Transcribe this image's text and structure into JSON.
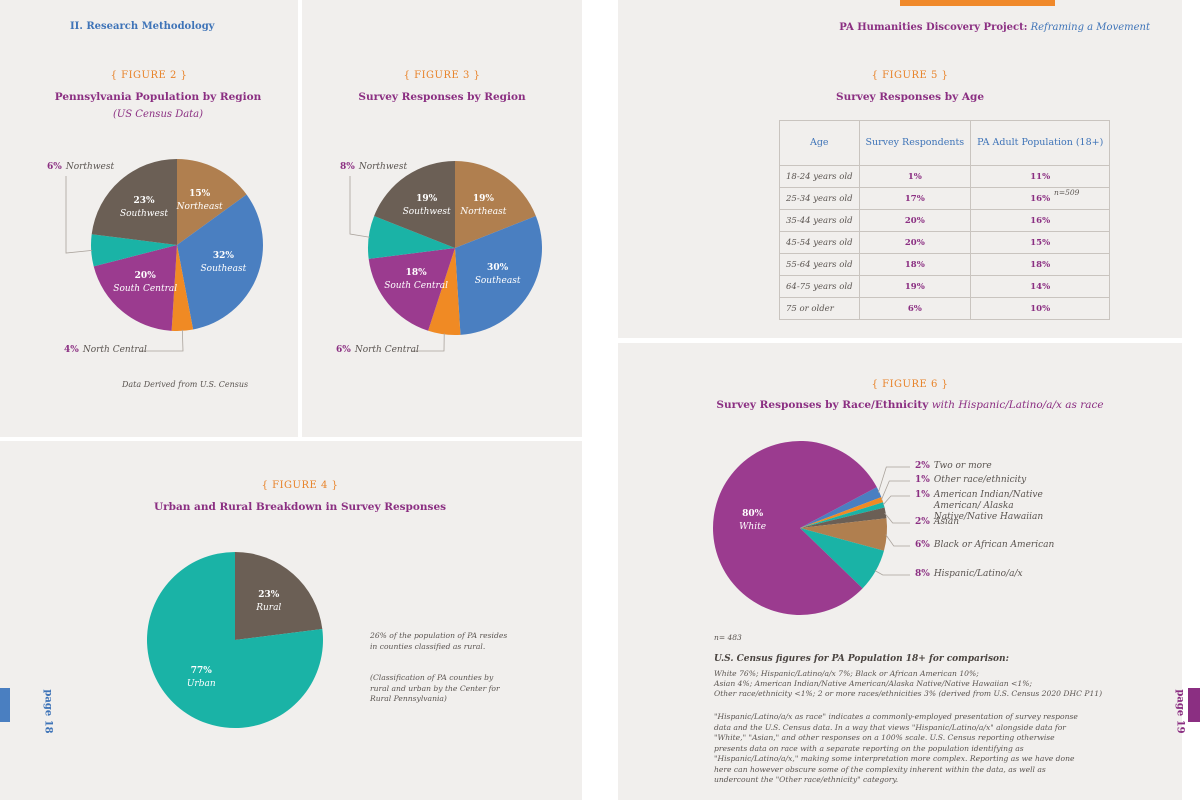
{
  "header": {
    "left": "II. Research Methodology",
    "right_title": "PA Humanities Discovery Project:",
    "right_subtitle": "Reframing a Movement"
  },
  "chart_data": [
    {
      "type": "pie",
      "figure": "{ FIGURE 2 }",
      "title": "Pennsylvania Population by Region",
      "subtitle": "(US Census Data)",
      "categories": [
        "Northeast",
        "Southeast",
        "North Central",
        "South Central",
        "Northwest",
        "Southwest"
      ],
      "values": [
        15,
        32,
        4,
        20,
        6,
        23
      ],
      "value_labels": [
        "15%",
        "32%",
        "4%",
        "20%",
        "6%",
        "23%"
      ],
      "colors": [
        "#b07f4f",
        "#4a7fc1",
        "#f08a24",
        "#9b3b8f",
        "#1ab3a6",
        "#6b5f55"
      ],
      "note": "Data Derived from U.S. Census"
    },
    {
      "type": "pie",
      "figure": "{ FIGURE 3 }",
      "title": "Survey Responses by Region",
      "categories": [
        "Northeast",
        "Southeast",
        "North Central",
        "South Central",
        "Northwest",
        "Southwest"
      ],
      "values": [
        19,
        30,
        6,
        18,
        8,
        19
      ],
      "value_labels": [
        "19%",
        "30%",
        "6%",
        "18%",
        "8%",
        "19%"
      ],
      "colors": [
        "#b07f4f",
        "#4a7fc1",
        "#f08a24",
        "#9b3b8f",
        "#1ab3a6",
        "#6b5f55"
      ]
    },
    {
      "type": "pie",
      "figure": "{ FIGURE 4 }",
      "title": "Urban and Rural Breakdown in Survey Responses",
      "categories": [
        "Rural",
        "Urban"
      ],
      "values": [
        23,
        77
      ],
      "value_labels": [
        "23%",
        "77%"
      ],
      "colors": [
        "#6b5f55",
        "#1ab3a6"
      ],
      "notes": [
        "26% of the population of PA resides in counties classified as rural.",
        "(Classification of PA counties by rural and urban by the Center for Rural Pennsylvania)"
      ]
    },
    {
      "type": "pie",
      "figure": "{ FIGURE 6 }",
      "title": "Survey Responses by Race/Ethnicity",
      "title_suffix": "with Hispanic/Latino/a/x as race",
      "categories": [
        "Two or more",
        "Other race/ethnicity",
        "American Indian/Native American/ Alaska Native/Native Hawaiian",
        "Asian",
        "Black or African American",
        "Hispanic/Latino/a/x",
        "White"
      ],
      "values": [
        2,
        1,
        1,
        2,
        6,
        8,
        80
      ],
      "value_labels": [
        "2%",
        "1%",
        "1%",
        "2%",
        "6%",
        "8%",
        "80%"
      ],
      "colors": [
        "#4a7fc1",
        "#f08a24",
        "#1ab3a6",
        "#6b5f55",
        "#b07f4f",
        "#1ab3a6",
        "#9b3b8f"
      ],
      "n": "n= 483"
    }
  ],
  "table": {
    "figure": "{ FIGURE 5 }",
    "title": "Survey Responses by Age",
    "columns": [
      "Age",
      "Survey Respondents",
      "PA Adult Population (18+)"
    ],
    "rows": [
      [
        "18-24 years old",
        "1%",
        "11%"
      ],
      [
        "25-34 years old",
        "17%",
        "16%"
      ],
      [
        "35-44 years old",
        "20%",
        "16%"
      ],
      [
        "45-54 years old",
        "20%",
        "15%"
      ],
      [
        "55-64 years old",
        "18%",
        "18%"
      ],
      [
        "64-75 years old",
        "19%",
        "14%"
      ],
      [
        "75 or older",
        "6%",
        "10%"
      ]
    ],
    "n": "n=509"
  },
  "comparison": {
    "heading": "U.S. Census figures for PA Population 18+ for comparison:",
    "lines": [
      "White 76%; Hispanic/Latino/a/x 7%; Black or African American 10%;",
      "Asian 4%; American Indian/Native American/Alaska Native/Native Hawaiian <1%;",
      "Other race/ethnicity <1%; 2 or more races/ethnicities 3% (derived from U.S. Census 2020 DHC P11)"
    ],
    "paragraph": "\"Hispanic/Latino/a/x as race\" indicates a commonly-employed presentation of survey response data and the U.S. Census data. In a way that views \"Hispanic/Latino/a/x\" alongside data for \"White,\" \"Asian,\" and other responses on a 100% scale. U.S. Census reporting otherwise presents data on race with a separate reporting on the population identifying as \"Hispanic/Latino/a/x,\" making some interpretation more complex. Reporting as we have done here can however obscure some of the complexity inherent within the data, as well as undercount the \"Other race/ethnicity\" category."
  },
  "pages": [
    "page 18",
    "page 19"
  ]
}
